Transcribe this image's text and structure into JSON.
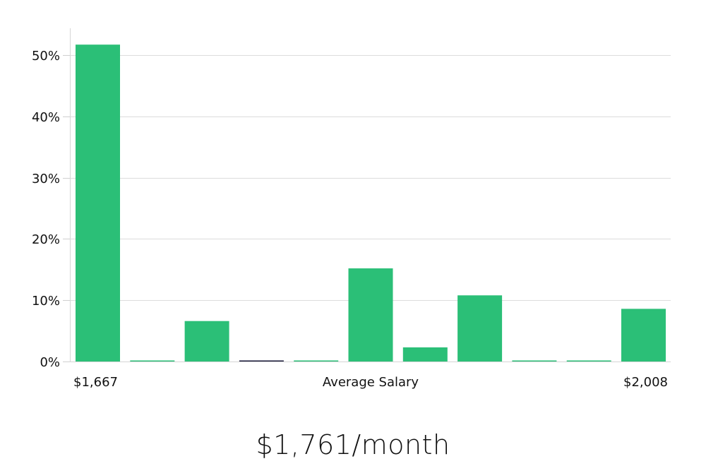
{
  "chart_data": {
    "type": "bar",
    "title": "",
    "xlabel": "Average Salary",
    "ylabel": "",
    "ylim": [
      0,
      55
    ],
    "yticks": [
      "0%",
      "10%",
      "20%",
      "30%",
      "40%",
      "50%"
    ],
    "ytick_values": [
      0,
      10,
      20,
      30,
      40,
      50
    ],
    "x_range_labels": {
      "min": "$1,667",
      "max": "$2,008"
    },
    "categories": [
      "1",
      "2",
      "3",
      "4",
      "5",
      "6",
      "7",
      "8",
      "9",
      "10",
      "11"
    ],
    "values": [
      51.7,
      0,
      6.6,
      0,
      0,
      15.2,
      2.3,
      10.8,
      0,
      0,
      8.6
    ],
    "grid": true,
    "legend": "none",
    "bar_color": "#2bbf77",
    "highlight_bar_index": 3,
    "highlight_color": "#1a1a3a"
  },
  "chart": {
    "x_min_label": "$1,667",
    "x_center_label": "Average Salary",
    "x_max_label": "$2,008"
  },
  "summary": {
    "average_salary": "$1,761/month"
  }
}
